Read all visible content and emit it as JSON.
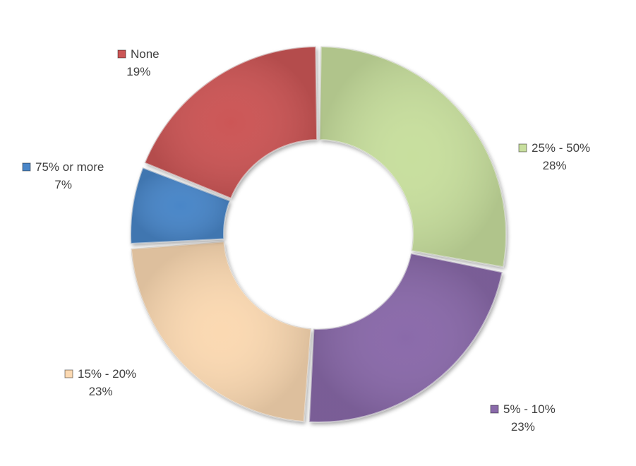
{
  "chart_data": {
    "type": "pie",
    "variant": "donut",
    "title": "",
    "legend": "none",
    "categories": [
      "25% - 50%",
      "5% - 10%",
      "15% - 20%",
      "75% or more",
      "None"
    ],
    "series": [
      {
        "values": [
          28,
          23,
          23,
          7,
          19
        ],
        "labels": [
          "28%",
          "23%",
          "23%",
          "7%",
          "19%"
        ],
        "colors": [
          "#c8df9e",
          "#8a6aaa",
          "#fbd9b2",
          "#4a86c8",
          "#cc5656"
        ]
      }
    ]
  }
}
